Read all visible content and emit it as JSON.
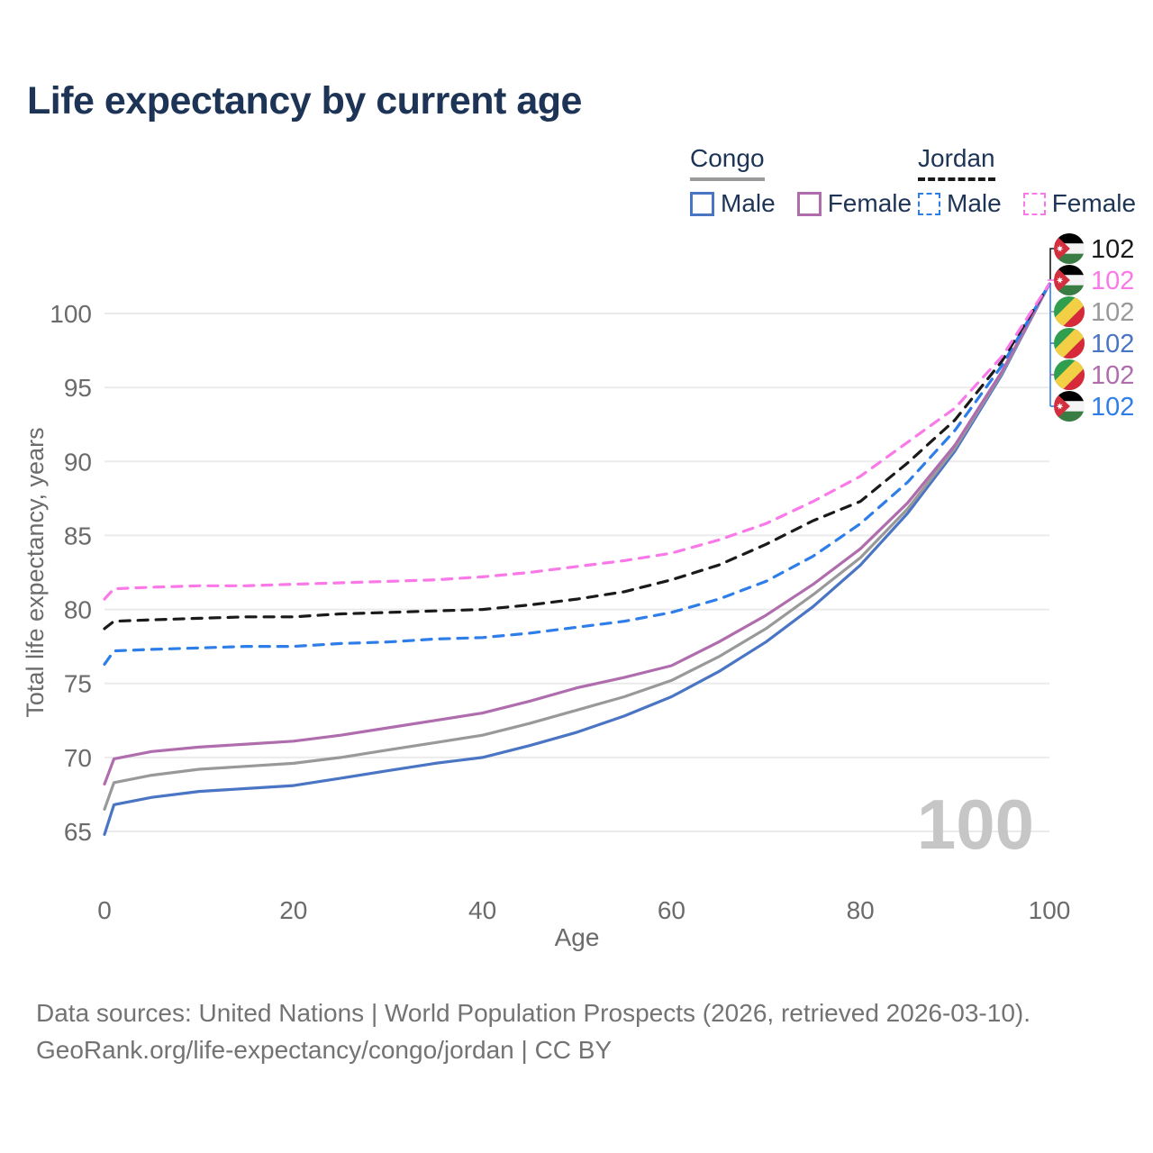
{
  "title": "Life expectancy by current age",
  "legend": {
    "groups": [
      {
        "name": "Congo",
        "line_style": "solid",
        "underline_color": "#9a9a9a",
        "items": [
          {
            "label": "Male",
            "color": "#4a74c4"
          },
          {
            "label": "Female",
            "color": "#b06dad"
          }
        ]
      },
      {
        "name": "Jordan",
        "line_style": "dashed",
        "underline_color": "#1a1a1a",
        "items": [
          {
            "label": "Male",
            "color": "#2e7ee9"
          },
          {
            "label": "Female",
            "color": "#fa78e8"
          }
        ]
      }
    ]
  },
  "watermark": "100",
  "footer": {
    "line1": "Data sources: United Nations | World Population Prospects (2026, retrieved 2026-03-10).",
    "line2": "GeoRank.org/life-expectancy/congo/jordan | CC BY"
  },
  "end_labels": [
    {
      "country": "jordan",
      "series": "Jordan Total",
      "value": "102",
      "color": "#1a1a1a"
    },
    {
      "country": "jordan",
      "series": "Jordan Female",
      "value": "102",
      "color": "#fa78e8"
    },
    {
      "country": "congo",
      "series": "Congo Total",
      "value": "102",
      "color": "#999999"
    },
    {
      "country": "congo",
      "series": "Congo Male",
      "value": "102",
      "color": "#4a74c4"
    },
    {
      "country": "congo",
      "series": "Congo Female",
      "value": "102",
      "color": "#b06dad"
    },
    {
      "country": "jordan",
      "series": "Jordan Male",
      "value": "102",
      "color": "#2e7ee9"
    }
  ],
  "chart_data": {
    "type": "line",
    "title": "Life expectancy by current age",
    "xlabel": "Age",
    "ylabel": "Total life expectancy, years",
    "xlim": [
      0,
      100
    ],
    "ylim": [
      63.5,
      103
    ],
    "x_ticks": [
      0,
      20,
      40,
      60,
      80,
      100
    ],
    "y_ticks": [
      65,
      70,
      75,
      80,
      85,
      90,
      95,
      100
    ],
    "grid": "horizontal",
    "legend_position": "top-right",
    "x": [
      0,
      1,
      5,
      10,
      15,
      20,
      25,
      30,
      35,
      40,
      45,
      50,
      55,
      60,
      65,
      70,
      75,
      80,
      85,
      90,
      95,
      100
    ],
    "series": [
      {
        "name": "Congo Male",
        "country": "congo",
        "sex": "male",
        "color": "#4a74c4",
        "dashed": false,
        "values": [
          64.8,
          66.8,
          67.3,
          67.7,
          67.9,
          68.1,
          68.6,
          69.1,
          69.6,
          70.0,
          70.8,
          71.7,
          72.8,
          74.1,
          75.8,
          77.8,
          80.2,
          83.0,
          86.5,
          90.7,
          95.9,
          102
        ]
      },
      {
        "name": "Congo Total",
        "country": "congo",
        "sex": "both",
        "color": "#999999",
        "dashed": false,
        "values": [
          66.5,
          68.3,
          68.8,
          69.2,
          69.4,
          69.6,
          70.0,
          70.5,
          71.0,
          71.5,
          72.3,
          73.2,
          74.1,
          75.2,
          76.8,
          78.7,
          81.0,
          83.5,
          86.8,
          90.9,
          96.0,
          102
        ]
      },
      {
        "name": "Congo Female",
        "country": "congo",
        "sex": "female",
        "color": "#b06dad",
        "dashed": false,
        "values": [
          68.2,
          69.9,
          70.4,
          70.7,
          70.9,
          71.1,
          71.5,
          72.0,
          72.5,
          73.0,
          73.8,
          74.7,
          75.4,
          76.2,
          77.8,
          79.6,
          81.7,
          84.1,
          87.2,
          91.1,
          96.1,
          102
        ]
      },
      {
        "name": "Jordan Male",
        "country": "jordan",
        "sex": "male",
        "color": "#2e7ee9",
        "dashed": true,
        "values": [
          76.3,
          77.2,
          77.3,
          77.4,
          77.5,
          77.5,
          77.7,
          77.8,
          78.0,
          78.1,
          78.4,
          78.8,
          79.2,
          79.8,
          80.7,
          81.9,
          83.6,
          85.8,
          88.6,
          92.1,
          96.5,
          102
        ]
      },
      {
        "name": "Jordan Total",
        "country": "jordan",
        "sex": "both",
        "color": "#1a1a1a",
        "dashed": true,
        "values": [
          78.7,
          79.2,
          79.3,
          79.4,
          79.5,
          79.5,
          79.7,
          79.8,
          79.9,
          80.0,
          80.3,
          80.7,
          81.2,
          82.0,
          83.0,
          84.4,
          86.0,
          87.3,
          89.9,
          92.8,
          96.8,
          102
        ]
      },
      {
        "name": "Jordan Female",
        "country": "jordan",
        "sex": "female",
        "color": "#fa78e8",
        "dashed": true,
        "values": [
          80.7,
          81.4,
          81.5,
          81.6,
          81.6,
          81.7,
          81.8,
          81.9,
          82.0,
          82.2,
          82.5,
          82.9,
          83.3,
          83.8,
          84.7,
          85.8,
          87.3,
          89.0,
          91.3,
          93.6,
          97.1,
          102
        ]
      }
    ]
  }
}
